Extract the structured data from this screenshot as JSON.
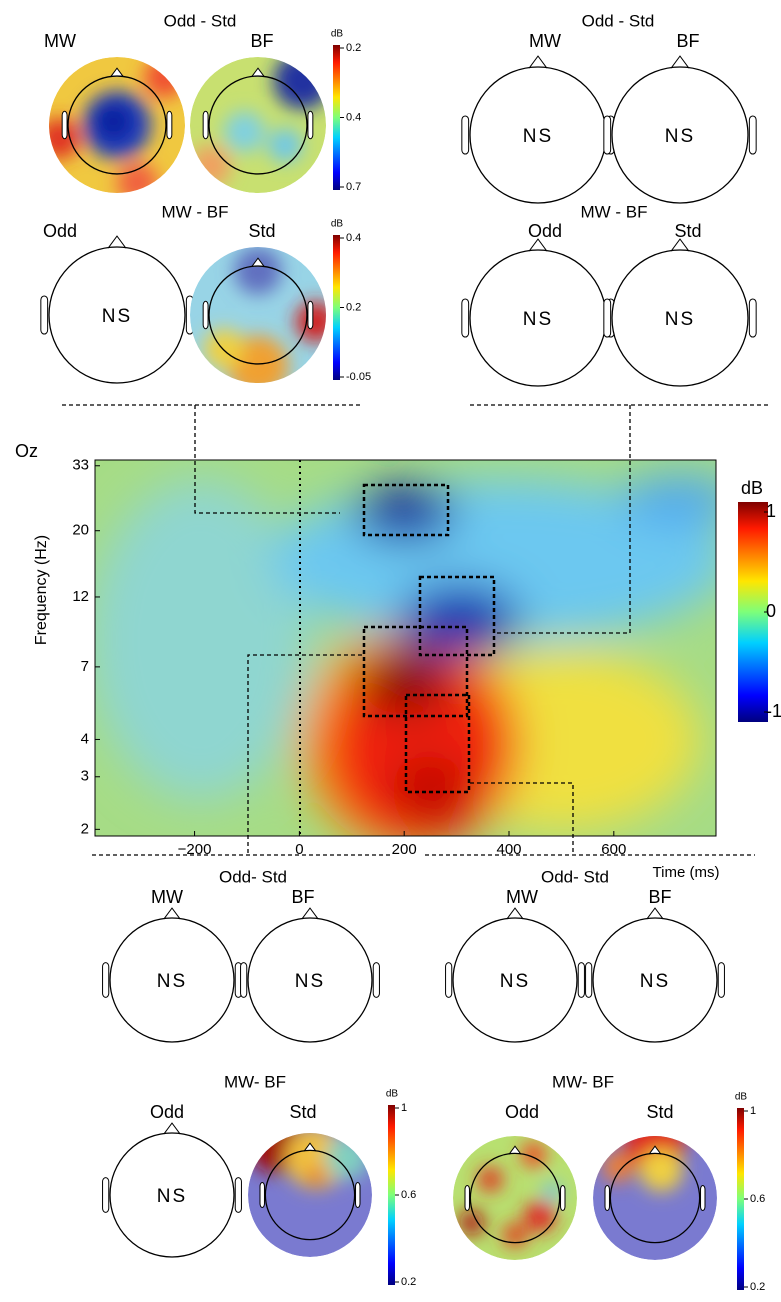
{
  "groups": [
    {
      "rows": [
        {
          "title": "Odd - Std",
          "heads": [
            {
              "label": "MW"
            },
            {
              "label": "BF"
            }
          ],
          "colorbar": {
            "unit": "dB",
            "ticks": [
              "0.2",
              "0.4",
              "0.7"
            ]
          }
        },
        {
          "title": "MW - BF",
          "heads": [
            {
              "label": "Odd",
              "text": "NS"
            },
            {
              "label": "Std"
            }
          ],
          "colorbar": {
            "unit": "dB",
            "ticks": [
              "0.4",
              "0.2",
              "-0.05"
            ]
          }
        }
      ]
    },
    {
      "rows": [
        {
          "title": "Odd - Std",
          "heads": [
            {
              "label": "MW",
              "text": "NS"
            },
            {
              "label": "BF",
              "text": "NS"
            }
          ]
        },
        {
          "title": "MW - BF",
          "heads": [
            {
              "label": "Odd",
              "text": "NS"
            },
            {
              "label": "Std",
              "text": "NS"
            }
          ]
        }
      ]
    },
    {
      "rows": [
        {
          "title": "Odd- Std",
          "heads": [
            {
              "label": "MW",
              "text": "NS"
            },
            {
              "label": "BF",
              "text": "NS"
            }
          ]
        },
        {
          "title": "MW- BF",
          "heads": [
            {
              "label": "Odd",
              "text": "NS"
            },
            {
              "label": "Std"
            }
          ],
          "colorbar": {
            "unit": "dB",
            "ticks": [
              "1",
              "0.6",
              "0.2"
            ]
          }
        }
      ]
    },
    {
      "rows": [
        {
          "title": "Odd- Std",
          "heads": [
            {
              "label": "MW",
              "text": "NS"
            },
            {
              "label": "BF",
              "text": "NS"
            }
          ]
        },
        {
          "title": "MW- BF",
          "heads": [
            {
              "label": "Odd"
            },
            {
              "label": "Std"
            }
          ],
          "colorbar": {
            "unit": "dB",
            "ticks": [
              "1",
              "0.6",
              "0.2"
            ]
          }
        }
      ]
    }
  ],
  "chart_data": {
    "type": "heatmap",
    "title": "Oz",
    "x_label": "Time (ms)",
    "y_label": "Frequency (Hz)",
    "xlim": [
      -390,
      795
    ],
    "xticks": [
      {
        "value": -200,
        "label": "−200"
      },
      0,
      200,
      400,
      600
    ],
    "ylim": [
      1.9,
      34.5
    ],
    "yticks": [
      2,
      3,
      4,
      7,
      12,
      20,
      33
    ],
    "log_y": true,
    "colorbar": {
      "label": "dB",
      "clim": [
        -1.1,
        1.1
      ],
      "ticks": [
        -1,
        0,
        1
      ]
    }
  }
}
